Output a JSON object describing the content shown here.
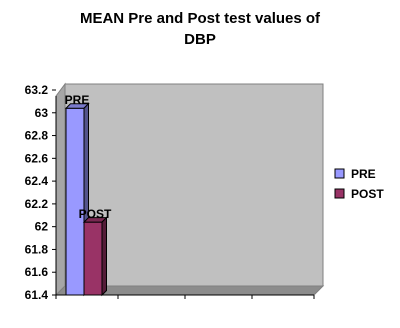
{
  "chart_data": {
    "type": "bar",
    "title": "MEAN Pre and Post test values of DBP",
    "categories": [
      "PRE",
      "POST"
    ],
    "values": [
      63.04,
      62.04
    ],
    "ylim": [
      61.4,
      63.2
    ],
    "ytick_step": 0.2,
    "ytick_labels": [
      "61.4",
      "61.6",
      "61.8",
      "62",
      "62.2",
      "62.4",
      "62.6",
      "62.8",
      "63",
      "63.2"
    ],
    "grid": false,
    "legend": {
      "position": "right",
      "entries": [
        "PRE",
        "POST"
      ]
    },
    "colors": {
      "PRE": "#9999ff",
      "POST": "#993366",
      "plot_background": "#c0c0c0"
    }
  }
}
